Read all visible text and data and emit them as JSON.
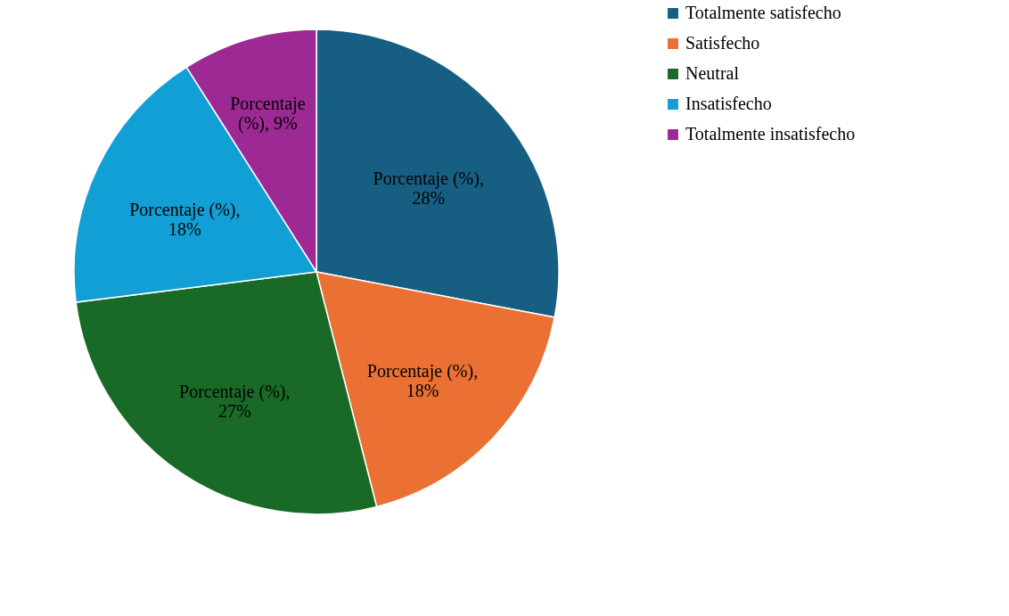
{
  "chart_data": {
    "type": "pie",
    "categories": [
      "Totalmente satisfecho",
      "Satisfecho",
      "Neutral",
      "Insatisfecho",
      "Totalmente insatisfecho"
    ],
    "series": [
      {
        "values": [
          28,
          18,
          27,
          18,
          9
        ],
        "value_labels": [
          "Porcentaje (%), 28%",
          "Porcentaje (%), 18%",
          "Porcentaje (%), 27%",
          "Porcentaje (%), 18%",
          "Porcentaje (%), 9%"
        ]
      }
    ],
    "colors": [
      "#175f82",
      "#ea7033",
      "#1a6a27",
      "#129fd5",
      "#9d2a94"
    ],
    "data_labels": true,
    "legend": "right"
  }
}
